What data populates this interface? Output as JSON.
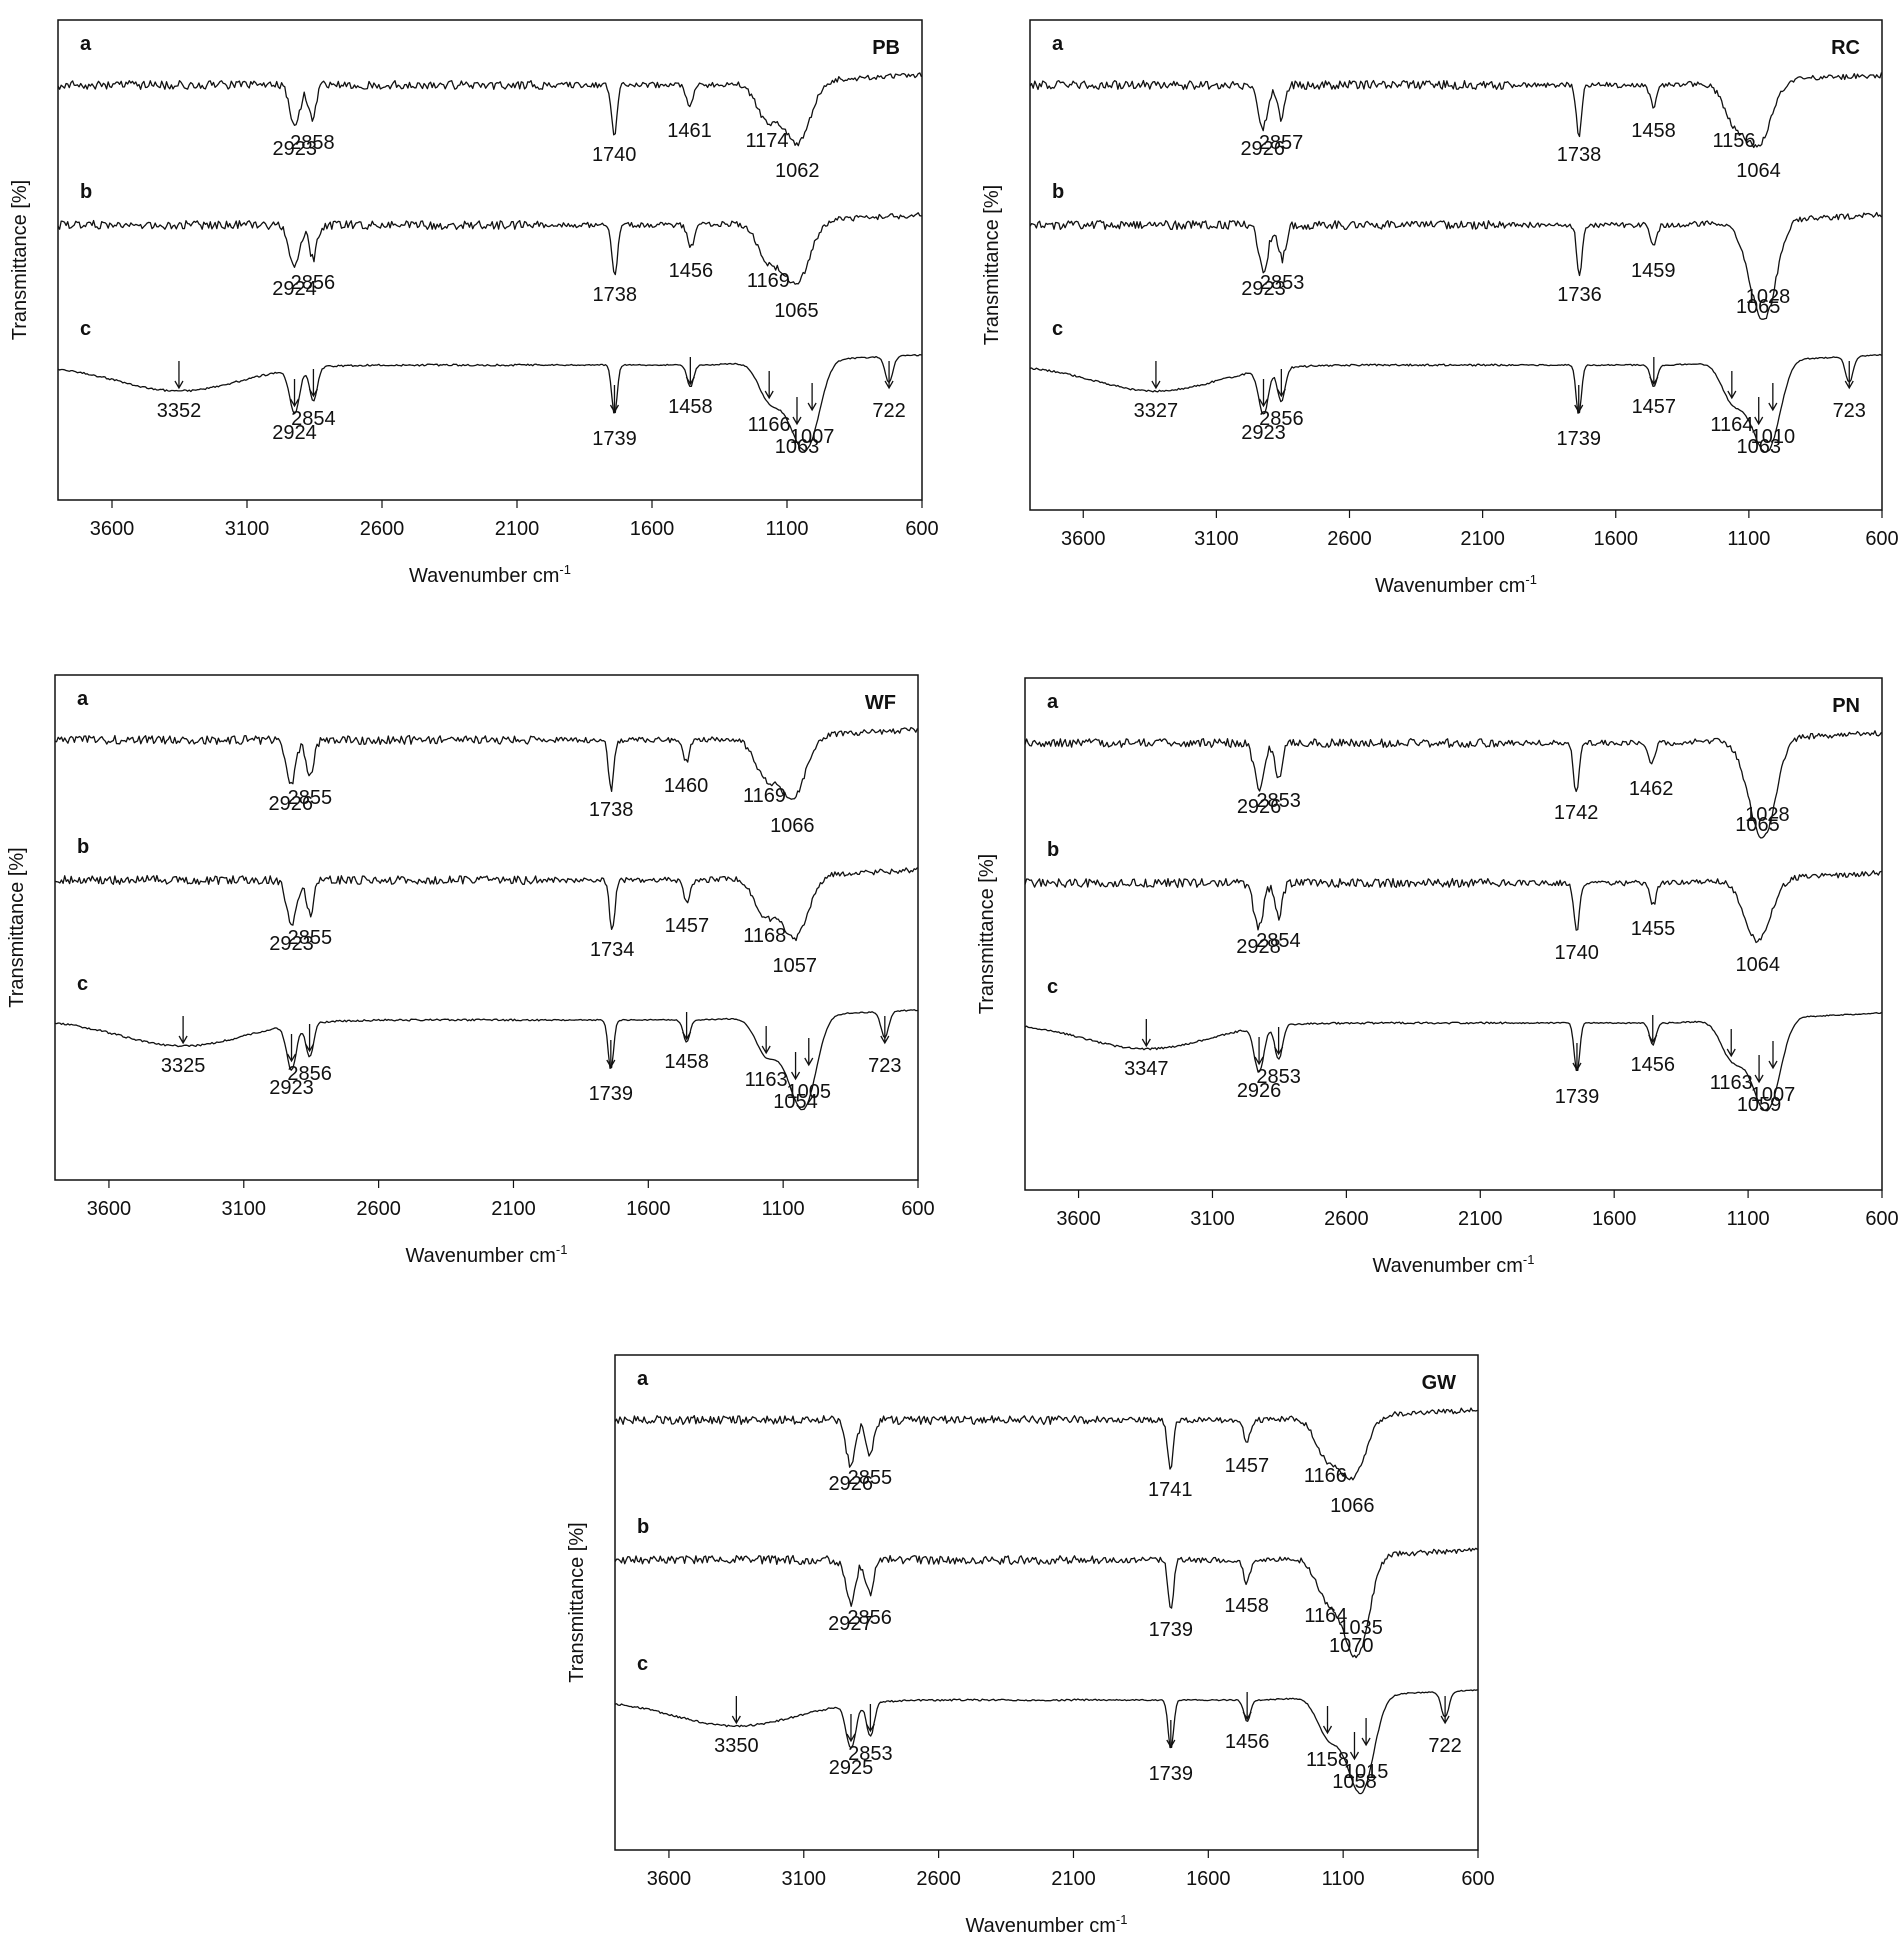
{
  "chart_data": [
    {
      "type": "line",
      "title": "PB",
      "xlabel": "Wavenumber cm",
      "xlabel_sup": "-1",
      "ylabel": "Transmittance [%]",
      "xlim": [
        3800,
        600
      ],
      "x_ticks": [
        "3600",
        "3100",
        "2600",
        "2100",
        "1600",
        "1100",
        "600"
      ],
      "grid": false,
      "series": [
        {
          "name": "a",
          "peaks": [
            {
              "x": 2923,
              "label": "2923"
            },
            {
              "x": 2858,
              "label": "2858"
            },
            {
              "x": 1740,
              "label": "1740"
            },
            {
              "x": 1461,
              "label": "1461"
            },
            {
              "x": 1174,
              "label": "1174"
            },
            {
              "x": 1062,
              "label": "1062"
            }
          ]
        },
        {
          "name": "b",
          "peaks": [
            {
              "x": 2924,
              "label": "2924"
            },
            {
              "x": 2856,
              "label": "2856"
            },
            {
              "x": 1738,
              "label": "1738"
            },
            {
              "x": 1456,
              "label": "1456"
            },
            {
              "x": 1169,
              "label": "1169"
            },
            {
              "x": 1065,
              "label": "1065"
            }
          ]
        },
        {
          "name": "c",
          "peaks": [
            {
              "x": 3352,
              "label": "3352"
            },
            {
              "x": 2924,
              "label": "2924"
            },
            {
              "x": 2854,
              "label": "2854"
            },
            {
              "x": 1739,
              "label": "1739"
            },
            {
              "x": 1458,
              "label": "1458"
            },
            {
              "x": 1166,
              "label": "1166"
            },
            {
              "x": 1063,
              "label": "1063"
            },
            {
              "x": 1007,
              "label": "1007"
            },
            {
              "x": 722,
              "label": "722"
            }
          ]
        }
      ]
    },
    {
      "type": "line",
      "title": "RC",
      "xlabel": "Wavenumber cm",
      "xlabel_sup": "-1",
      "ylabel": "Transmittance [%]",
      "xlim": [
        3800,
        600
      ],
      "x_ticks": [
        "3600",
        "3100",
        "2600",
        "2100",
        "1600",
        "1100",
        "600"
      ],
      "grid": false,
      "series": [
        {
          "name": "a",
          "peaks": [
            {
              "x": 2926,
              "label": "2926"
            },
            {
              "x": 2857,
              "label": "2857"
            },
            {
              "x": 1738,
              "label": "1738"
            },
            {
              "x": 1458,
              "label": "1458"
            },
            {
              "x": 1156,
              "label": "1156"
            },
            {
              "x": 1064,
              "label": "1064"
            }
          ]
        },
        {
          "name": "b",
          "peaks": [
            {
              "x": 2923,
              "label": "2923"
            },
            {
              "x": 2853,
              "label": "2853"
            },
            {
              "x": 1736,
              "label": "1736"
            },
            {
              "x": 1459,
              "label": "1459"
            },
            {
              "x": 1065,
              "label": "1065"
            },
            {
              "x": 1028,
              "label": "1028"
            }
          ]
        },
        {
          "name": "c",
          "peaks": [
            {
              "x": 3327,
              "label": "3327"
            },
            {
              "x": 2923,
              "label": "2923"
            },
            {
              "x": 2856,
              "label": "2856"
            },
            {
              "x": 1739,
              "label": "1739"
            },
            {
              "x": 1457,
              "label": "1457"
            },
            {
              "x": 1164,
              "label": "1164"
            },
            {
              "x": 1063,
              "label": "1063"
            },
            {
              "x": 1010,
              "label": "1010"
            },
            {
              "x": 723,
              "label": "723"
            }
          ]
        }
      ]
    },
    {
      "type": "line",
      "title": "WF",
      "xlabel": "Wavenumber cm",
      "xlabel_sup": "-1",
      "ylabel": "Transmittance [%]",
      "xlim": [
        3800,
        600
      ],
      "x_ticks": [
        "3600",
        "3100",
        "2600",
        "2100",
        "1600",
        "1100",
        "600"
      ],
      "grid": false,
      "series": [
        {
          "name": "a",
          "peaks": [
            {
              "x": 2926,
              "label": "2926"
            },
            {
              "x": 2855,
              "label": "2855"
            },
            {
              "x": 1738,
              "label": "1738"
            },
            {
              "x": 1460,
              "label": "1460"
            },
            {
              "x": 1169,
              "label": "1169"
            },
            {
              "x": 1066,
              "label": "1066"
            }
          ]
        },
        {
          "name": "b",
          "peaks": [
            {
              "x": 2923,
              "label": "2923"
            },
            {
              "x": 2855,
              "label": "2855"
            },
            {
              "x": 1734,
              "label": "1734"
            },
            {
              "x": 1457,
              "label": "1457"
            },
            {
              "x": 1168,
              "label": "1168"
            },
            {
              "x": 1057,
              "label": "1057"
            }
          ]
        },
        {
          "name": "c",
          "peaks": [
            {
              "x": 3325,
              "label": "3325"
            },
            {
              "x": 2923,
              "label": "2923"
            },
            {
              "x": 2856,
              "label": "2856"
            },
            {
              "x": 1739,
              "label": "1739"
            },
            {
              "x": 1458,
              "label": "1458"
            },
            {
              "x": 1163,
              "label": "1163"
            },
            {
              "x": 1054,
              "label": "1054"
            },
            {
              "x": 1005,
              "label": "1005"
            },
            {
              "x": 723,
              "label": "723"
            }
          ]
        }
      ]
    },
    {
      "type": "line",
      "title": "PN",
      "xlabel": "Wavenumber cm",
      "xlabel_sup": "-1",
      "ylabel": "Transmittance [%]",
      "xlim": [
        3800,
        600
      ],
      "x_ticks": [
        "3600",
        "3100",
        "2600",
        "2100",
        "1600",
        "1100",
        "600"
      ],
      "grid": false,
      "series": [
        {
          "name": "a",
          "peaks": [
            {
              "x": 2926,
              "label": "2926"
            },
            {
              "x": 2853,
              "label": "2853"
            },
            {
              "x": 1742,
              "label": "1742"
            },
            {
              "x": 1462,
              "label": "1462"
            },
            {
              "x": 1065,
              "label": "1065"
            },
            {
              "x": 1028,
              "label": "1028"
            }
          ]
        },
        {
          "name": "b",
          "peaks": [
            {
              "x": 2928,
              "label": "2928"
            },
            {
              "x": 2854,
              "label": "2854"
            },
            {
              "x": 1740,
              "label": "1740"
            },
            {
              "x": 1455,
              "label": "1455"
            },
            {
              "x": 1064,
              "label": "1064"
            }
          ]
        },
        {
          "name": "c",
          "peaks": [
            {
              "x": 3347,
              "label": "3347"
            },
            {
              "x": 2926,
              "label": "2926"
            },
            {
              "x": 2853,
              "label": "2853"
            },
            {
              "x": 1739,
              "label": "1739"
            },
            {
              "x": 1456,
              "label": "1456"
            },
            {
              "x": 1163,
              "label": "1163"
            },
            {
              "x": 1059,
              "label": "1059"
            },
            {
              "x": 1007,
              "label": "1007"
            }
          ]
        }
      ]
    },
    {
      "type": "line",
      "title": "GW",
      "xlabel": "Wavenumber cm",
      "xlabel_sup": "-1",
      "ylabel": "Transmittance [%]",
      "xlim": [
        3800,
        600
      ],
      "x_ticks": [
        "3600",
        "3100",
        "2600",
        "2100",
        "1600",
        "1100",
        "600"
      ],
      "grid": false,
      "series": [
        {
          "name": "a",
          "peaks": [
            {
              "x": 2926,
              "label": "2926"
            },
            {
              "x": 2855,
              "label": "2855"
            },
            {
              "x": 1741,
              "label": "1741"
            },
            {
              "x": 1457,
              "label": "1457"
            },
            {
              "x": 1166,
              "label": "1166"
            },
            {
              "x": 1066,
              "label": "1066"
            }
          ]
        },
        {
          "name": "b",
          "peaks": [
            {
              "x": 2927,
              "label": "2927"
            },
            {
              "x": 2856,
              "label": "2856"
            },
            {
              "x": 1739,
              "label": "1739"
            },
            {
              "x": 1458,
              "label": "1458"
            },
            {
              "x": 1164,
              "label": "1164"
            },
            {
              "x": 1070,
              "label": "1070"
            },
            {
              "x": 1035,
              "label": "1035"
            }
          ]
        },
        {
          "name": "c",
          "peaks": [
            {
              "x": 3350,
              "label": "3350"
            },
            {
              "x": 2925,
              "label": "2925"
            },
            {
              "x": 2853,
              "label": "2853"
            },
            {
              "x": 1739,
              "label": "1739"
            },
            {
              "x": 1456,
              "label": "1456"
            },
            {
              "x": 1158,
              "label": "1158"
            },
            {
              "x": 1058,
              "label": "1058"
            },
            {
              "x": 1015,
              "label": "1015"
            },
            {
              "x": 722,
              "label": "722"
            }
          ]
        }
      ]
    }
  ]
}
